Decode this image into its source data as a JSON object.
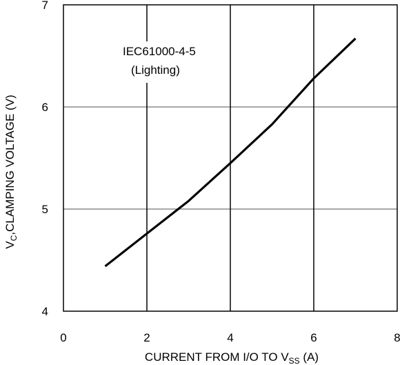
{
  "chart_data": {
    "type": "line",
    "title": "",
    "annotation": {
      "line1": "IEC61000-4-5",
      "line2": "(Lighting)"
    },
    "xlabel": {
      "main": "CURRENT FROM I/O TO V",
      "sub": "SS",
      "unit": " (A)"
    },
    "ylabel": {
      "main": "V",
      "sub": "C",
      "rest": ",CLAMPING VOLTAGE (V)"
    },
    "xlim": [
      0,
      8
    ],
    "ylim": [
      4,
      7
    ],
    "xticks": [
      0,
      2,
      4,
      6,
      8
    ],
    "yticks": [
      4,
      5,
      6,
      7
    ],
    "grid": true,
    "series": [
      {
        "x": [
          1,
          2,
          3,
          4,
          5,
          6,
          7
        ],
        "y": [
          4.44,
          4.76,
          5.08,
          5.45,
          5.83,
          6.28,
          6.67
        ]
      }
    ],
    "colors": {
      "line": "#000000",
      "grid": "#8c8c8c",
      "frame": "#000000"
    }
  }
}
